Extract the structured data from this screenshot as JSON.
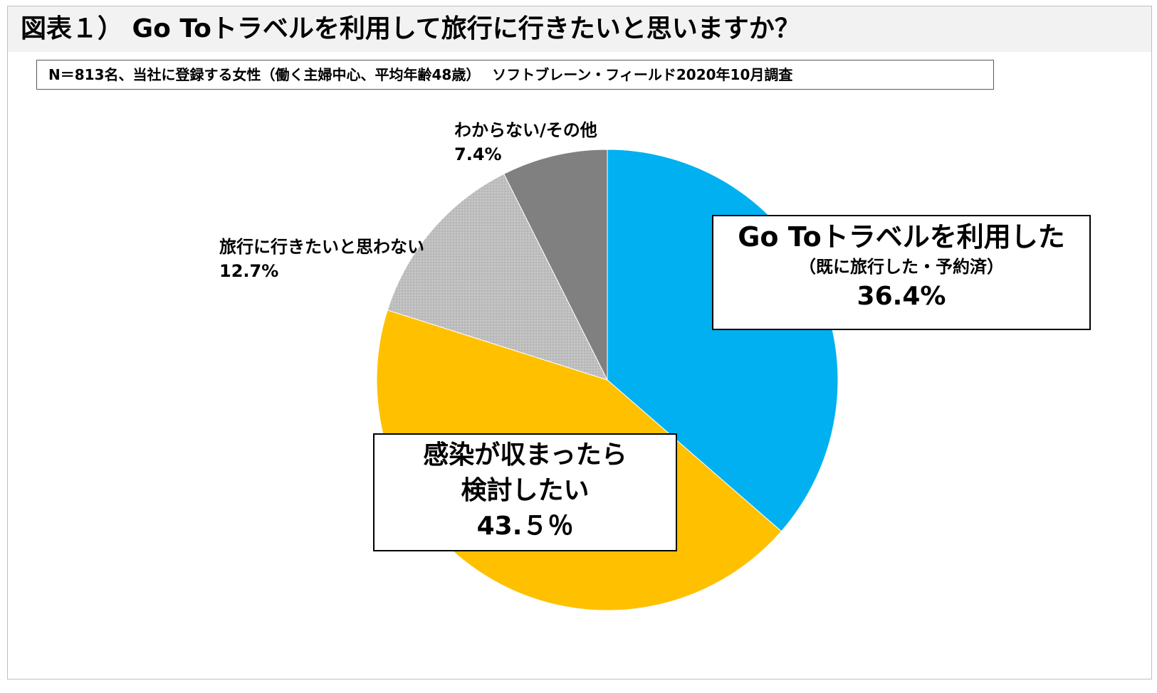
{
  "header": {
    "title": "図表１） Go Toトラベルを利用して旅行に行きたいと思いますか？",
    "subtitle": "N＝813名、当社に登録する女性（働く主婦中心、平均年齢48歳）　 ソフトブレーン・フィールド2020年10月調査"
  },
  "chart_data": {
    "type": "pie",
    "title": "",
    "start_angle_deg": 0,
    "direction": "clockwise",
    "slices": [
      {
        "label": "Go Toトラベルを利用した",
        "note": "（既に旅行した・予約済）",
        "value": 36.4,
        "value_label": "36.4%",
        "color": "#00b0f0"
      },
      {
        "label": "感染が収まったら検討したい",
        "label_line1": "感染が収まったら",
        "label_line2": "検討したい",
        "value": 43.5,
        "value_label": "43.５％",
        "color": "#ffc000"
      },
      {
        "label": "旅行に行きたいと思わない",
        "value": 12.7,
        "value_label": "12.7%",
        "color": "#bfbfbf"
      },
      {
        "label": "わからない/その他",
        "value": 7.4,
        "value_label": "7.4%",
        "color": "#808080"
      }
    ]
  }
}
